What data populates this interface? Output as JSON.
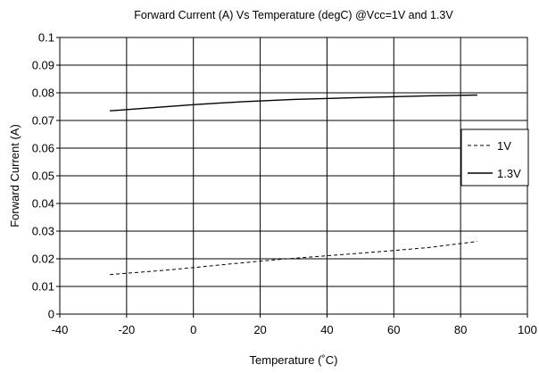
{
  "chart_data": {
    "type": "line",
    "title": "Forward Current (A) Vs Temperature (degC) @Vcc=1V and 1.3V",
    "xlabel": "Temperature (˚C)",
    "ylabel": "Forward Current (A)",
    "xlim": [
      -40,
      100
    ],
    "ylim": [
      0,
      0.1
    ],
    "x_ticks": [
      "-40",
      "-20",
      "0",
      "20",
      "40",
      "60",
      "80",
      "100"
    ],
    "y_ticks": [
      "0",
      "0.01",
      "0.02",
      "0.03",
      "0.04",
      "0.05",
      "0.06",
      "0.07",
      "0.08",
      "0.09",
      "0.1"
    ],
    "grid": true,
    "legend_position": "right",
    "series": [
      {
        "name": "1V",
        "style": "dashed",
        "color": "#000000",
        "x": [
          -25,
          -10,
          0,
          10,
          25,
          40,
          55,
          70,
          85
        ],
        "y": [
          0.0143,
          0.0157,
          0.0168,
          0.018,
          0.0197,
          0.0211,
          0.0225,
          0.024,
          0.0263
        ]
      },
      {
        "name": "1.3V",
        "style": "solid",
        "color": "#000000",
        "x": [
          -25,
          -10,
          0,
          15,
          30,
          50,
          70,
          85
        ],
        "y": [
          0.0735,
          0.0748,
          0.0757,
          0.0768,
          0.0776,
          0.0783,
          0.0789,
          0.0792
        ]
      }
    ]
  }
}
